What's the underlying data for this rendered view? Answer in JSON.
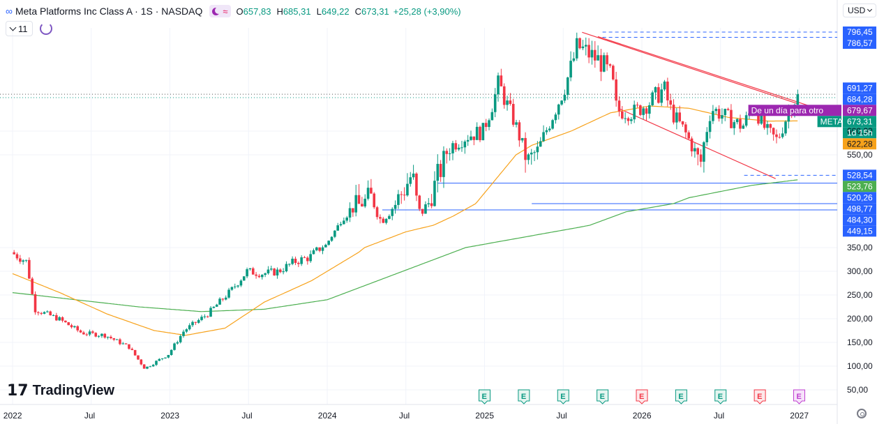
{
  "header": {
    "title": "Meta Platforms Inc Class A · 1S · NASDAQ",
    "open_label": "O",
    "open": "657,83",
    "high_label": "H",
    "high": "685,31",
    "low_label": "L",
    "low": "649,22",
    "close_label": "C",
    "close": "673,31",
    "change": "+25,28 (+3,90%)",
    "icons": [
      "infinity-icon",
      "moon-icon",
      "approx-icon"
    ]
  },
  "controls": {
    "indicator_count": "11",
    "currency": "USD"
  },
  "brand": {
    "logo_text": "TradingView"
  },
  "colors": {
    "up": "#089981",
    "down": "#f23645",
    "ma_fast": "#f7a21b",
    "ma_slow": "#4caf50",
    "channel": "#f23645",
    "hline": "#2962ff",
    "meta_badge": "#089981",
    "premarket_badge": "#9c27b0",
    "orange_badge": "#f7a21b",
    "green_badge": "#4caf50"
  },
  "chart_data": {
    "type": "candlestick",
    "symbol": "META",
    "interval": "1S",
    "ylim": [
      40,
      820
    ],
    "y_ticks": [
      "50,00",
      "100,00",
      "150,00",
      "200,00",
      "250,00",
      "300,00",
      "350,00",
      "550,00",
      "600,00"
    ],
    "x_ticks": [
      "2022",
      "Jul",
      "2023",
      "Jul",
      "2024",
      "Jul",
      "2025",
      "Jul",
      "2026",
      "Jul",
      "2027"
    ],
    "price_labels": [
      {
        "text": "796,45",
        "value": 796.45,
        "style": "blue"
      },
      {
        "text": "786,57",
        "value": 786.57,
        "style": "blue"
      },
      {
        "text": "691,27",
        "value": 691.27,
        "style": "blue"
      },
      {
        "text": "684,28",
        "value": 684.28,
        "style": "blue"
      },
      {
        "text": "679,67",
        "value": 679.67,
        "style": "purple"
      },
      {
        "text": "673,31",
        "value": 673.31,
        "style": "green"
      },
      {
        "text": "1d 15h",
        "value": 673.31,
        "style": "green-sub"
      },
      {
        "text": "622,28",
        "value": 622.28,
        "style": "orange"
      },
      {
        "text": "528,54",
        "value": 528.54,
        "style": "blue"
      },
      {
        "text": "523,76",
        "value": 523.76,
        "style": "lightgreen"
      },
      {
        "text": "520,26",
        "value": 520.26,
        "style": "blue"
      },
      {
        "text": "498,77",
        "value": 498.77,
        "style": "blue"
      },
      {
        "text": "484,30",
        "value": 484.3,
        "style": "blue"
      },
      {
        "text": "449,15",
        "value": 449.15,
        "style": "blue"
      }
    ],
    "side_tags": [
      {
        "text": "De un día para otro",
        "value": 679.67,
        "color": "#9c27b0"
      },
      {
        "text": "META",
        "value": 673.31,
        "color": "#089981"
      }
    ],
    "events": [
      {
        "t": 2025.0,
        "letter": "E",
        "kind": "up"
      },
      {
        "t": 2025.25,
        "letter": "E",
        "kind": "up"
      },
      {
        "t": 2025.5,
        "letter": "E",
        "kind": "up"
      },
      {
        "t": 2025.75,
        "letter": "E",
        "kind": "up"
      },
      {
        "t": 2026.0,
        "letter": "E",
        "kind": "down"
      },
      {
        "t": 2026.25,
        "letter": "E",
        "kind": "up"
      },
      {
        "t": 2026.5,
        "letter": "E",
        "kind": "up"
      },
      {
        "t": 2026.75,
        "letter": "E",
        "kind": "down"
      },
      {
        "t": 2027.0,
        "letter": "E",
        "kind": "future"
      }
    ],
    "horizontal_lines": [
      {
        "from": 2024.7,
        "value": 520.26
      },
      {
        "from": 2025.3,
        "value": 498.77
      },
      {
        "from": 2024.35,
        "value": 484.3
      }
    ],
    "dashed_levels": [
      {
        "from": 2025.75,
        "value": 796.45
      },
      {
        "from": 2025.75,
        "value": 786.57
      },
      {
        "from": 2026.65,
        "value": 528.54
      }
    ],
    "price_range": [
      {
        "t": 2022.0,
        "v": 340
      },
      {
        "t": 2022.1,
        "v": 320
      },
      {
        "t": 2022.15,
        "v": 220
      },
      {
        "t": 2022.3,
        "v": 200
      },
      {
        "t": 2022.45,
        "v": 170
      },
      {
        "t": 2022.6,
        "v": 165
      },
      {
        "t": 2022.75,
        "v": 140
      },
      {
        "t": 2022.85,
        "v": 95
      },
      {
        "t": 2023.0,
        "v": 125
      },
      {
        "t": 2023.1,
        "v": 175
      },
      {
        "t": 2023.25,
        "v": 210
      },
      {
        "t": 2023.4,
        "v": 260
      },
      {
        "t": 2023.5,
        "v": 300
      },
      {
        "t": 2023.6,
        "v": 295
      },
      {
        "t": 2023.7,
        "v": 300
      },
      {
        "t": 2023.8,
        "v": 320
      },
      {
        "t": 2023.9,
        "v": 330
      },
      {
        "t": 2024.0,
        "v": 360
      },
      {
        "t": 2024.1,
        "v": 470
      },
      {
        "t": 2024.2,
        "v": 495
      },
      {
        "t": 2024.3,
        "v": 505
      },
      {
        "t": 2024.35,
        "v": 460
      },
      {
        "t": 2024.45,
        "v": 500
      },
      {
        "t": 2024.55,
        "v": 530
      },
      {
        "t": 2024.6,
        "v": 475
      },
      {
        "t": 2024.7,
        "v": 520
      },
      {
        "t": 2024.8,
        "v": 570
      },
      {
        "t": 2024.9,
        "v": 590
      },
      {
        "t": 2025.0,
        "v": 600
      },
      {
        "t": 2025.1,
        "v": 700
      },
      {
        "t": 2025.2,
        "v": 620
      },
      {
        "t": 2025.28,
        "v": 540
      },
      {
        "t": 2025.35,
        "v": 560
      },
      {
        "t": 2025.45,
        "v": 640
      },
      {
        "t": 2025.55,
        "v": 720
      },
      {
        "t": 2025.6,
        "v": 770
      },
      {
        "t": 2025.65,
        "v": 760
      },
      {
        "t": 2025.75,
        "v": 740
      },
      {
        "t": 2025.82,
        "v": 710
      },
      {
        "t": 2025.85,
        "v": 645
      },
      {
        "t": 2025.95,
        "v": 640
      },
      {
        "t": 2026.05,
        "v": 660
      },
      {
        "t": 2026.15,
        "v": 690
      },
      {
        "t": 2026.2,
        "v": 640
      },
      {
        "t": 2026.28,
        "v": 600
      },
      {
        "t": 2026.38,
        "v": 535
      },
      {
        "t": 2026.45,
        "v": 650
      },
      {
        "t": 2026.55,
        "v": 630
      },
      {
        "t": 2026.65,
        "v": 610
      },
      {
        "t": 2026.72,
        "v": 655
      },
      {
        "t": 2026.8,
        "v": 600
      },
      {
        "t": 2026.87,
        "v": 580
      },
      {
        "t": 2026.95,
        "v": 650
      },
      {
        "t": 2026.99,
        "v": 673.31
      }
    ],
    "ma_fast": [
      {
        "t": 2022.0,
        "v": 295
      },
      {
        "t": 2022.3,
        "v": 255
      },
      {
        "t": 2022.6,
        "v": 210
      },
      {
        "t": 2022.9,
        "v": 175
      },
      {
        "t": 2023.1,
        "v": 165
      },
      {
        "t": 2023.35,
        "v": 180
      },
      {
        "t": 2023.6,
        "v": 235
      },
      {
        "t": 2023.9,
        "v": 280
      },
      {
        "t": 2024.2,
        "v": 340
      },
      {
        "t": 2024.5,
        "v": 420
      },
      {
        "t": 2024.8,
        "v": 470
      },
      {
        "t": 2025.05,
        "v": 520
      },
      {
        "t": 2025.3,
        "v": 570
      },
      {
        "t": 2025.55,
        "v": 600
      },
      {
        "t": 2025.8,
        "v": 640
      },
      {
        "t": 2026.05,
        "v": 655
      },
      {
        "t": 2026.3,
        "v": 650
      },
      {
        "t": 2026.55,
        "v": 630
      },
      {
        "t": 2026.8,
        "v": 622
      },
      {
        "t": 2026.99,
        "v": 622.28
      }
    ],
    "ma_slow": [
      {
        "t": 2022.0,
        "v": 255
      },
      {
        "t": 2022.4,
        "v": 240
      },
      {
        "t": 2022.8,
        "v": 225
      },
      {
        "t": 2023.2,
        "v": 215
      },
      {
        "t": 2023.6,
        "v": 220
      },
      {
        "t": 2024.0,
        "v": 240
      },
      {
        "t": 2024.4,
        "v": 290
      },
      {
        "t": 2024.8,
        "v": 340
      },
      {
        "t": 2025.2,
        "v": 390
      },
      {
        "t": 2025.6,
        "v": 440
      },
      {
        "t": 2025.9,
        "v": 480
      },
      {
        "t": 2026.3,
        "v": 505
      },
      {
        "t": 2026.7,
        "v": 518
      },
      {
        "t": 2026.99,
        "v": 523.76
      }
    ]
  }
}
